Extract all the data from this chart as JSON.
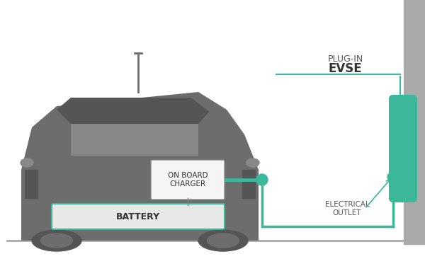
{
  "bg_color": "#ffffff",
  "car_color": "#6d6d6d",
  "green_color": "#3ab899",
  "battery_fill": "#e8e8e8",
  "battery_stroke": "#3ab899",
  "charger_box_fill": "#f5f5f5",
  "charger_box_stroke": "#555555",
  "wall_color": "#aaaaaa",
  "text_color_dark": "#333333",
  "text_color_green": "#3ab899",
  "ground_color": "#aaaaaa",
  "plug_in_label": "PLUG-IN",
  "evse_label": "EVSE",
  "battery_label": "BATTERY",
  "charger_label": "ON BOARD\nCHARGER",
  "outlet_label": "ELECTRICAL\nOUTLET"
}
